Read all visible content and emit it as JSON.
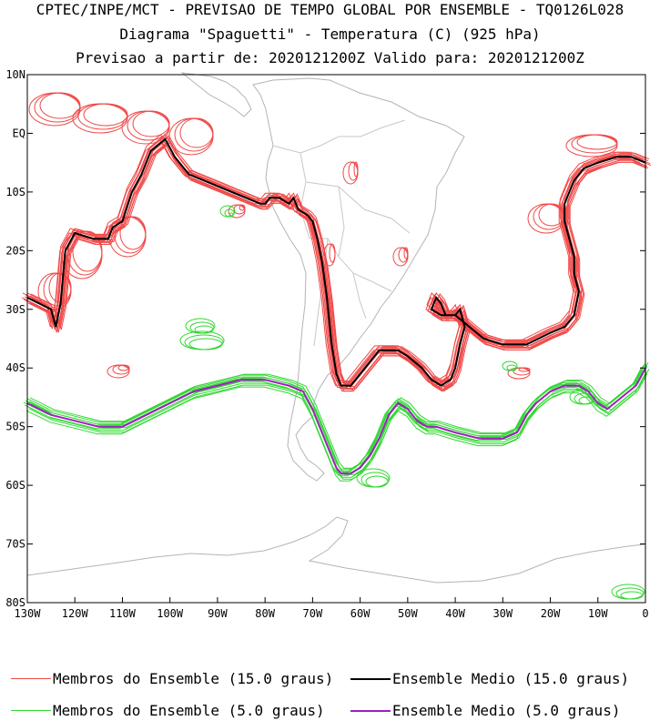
{
  "title": {
    "line1": "CPTEC/INPE/MCT - PREVISAO DE TEMPO GLOBAL POR ENSEMBLE - TQ0126L028",
    "line2": "Diagrama \"Spaguetti\" - Temperatura (C) (925 hPa)",
    "line3": "Previsao a partir de: 2020121200Z  Valido para: 2020121200Z"
  },
  "colors": {
    "member_15": "#f04848",
    "mean_15": "#000000",
    "member_5": "#30d830",
    "mean_5": "#a020c0",
    "coast": "#b4b4b4"
  },
  "chart_data": {
    "type": "line",
    "xlim": [
      -130,
      0
    ],
    "ylim": [
      -80,
      10
    ],
    "x_ticks": [
      "130W",
      "120W",
      "110W",
      "100W",
      "90W",
      "80W",
      "70W",
      "60W",
      "50W",
      "40W",
      "30W",
      "20W",
      "10W",
      "0"
    ],
    "y_ticks": [
      "10N",
      "EQ",
      "10S",
      "20S",
      "30S",
      "40S",
      "50S",
      "60S",
      "70S",
      "80S"
    ],
    "series": [
      {
        "name": "Ensemble Medio (15.0 graus)",
        "lon": [
          -130,
          -125,
          -124,
          -123,
          -122,
          -120,
          -116,
          -113,
          -112,
          -110,
          -108,
          -106,
          -104,
          -101,
          -99,
          -96,
          -93,
          -90,
          -87,
          -84,
          -81,
          -80,
          -79,
          -77,
          -75,
          -74,
          -73,
          -71,
          -70,
          -69,
          -68,
          -67,
          -66,
          -65,
          -64,
          -62,
          -59,
          -56,
          -52,
          -50,
          -47,
          -45,
          -43,
          -41,
          -40,
          -39,
          -38,
          -39,
          -40,
          -42,
          -43,
          -44,
          -45,
          -43,
          -40,
          -37,
          -34,
          -30,
          -25,
          -20,
          -17,
          -15,
          -14,
          -15,
          -15,
          -16,
          -17,
          -17,
          -16,
          -15,
          -13,
          -10,
          -6,
          -3,
          0
        ],
        "lat": [
          -28,
          -30,
          -33,
          -29,
          -20,
          -17,
          -18,
          -18,
          -16,
          -15,
          -10,
          -7,
          -3,
          -1,
          -4,
          -7,
          -8,
          -9,
          -10,
          -11,
          -12,
          -12,
          -11,
          -11,
          -12,
          -11,
          -13,
          -14,
          -15,
          -18,
          -22,
          -28,
          -36,
          -41,
          -43,
          -43,
          -40,
          -37,
          -37,
          -38,
          -40,
          -42,
          -43,
          -42,
          -40,
          -36,
          -33,
          -30,
          -31,
          -31,
          -29,
          -28,
          -30,
          -31,
          -31,
          -33,
          -35,
          -36,
          -36,
          -34,
          -33,
          -31,
          -27,
          -24,
          -21,
          -18,
          -15,
          -12,
          -10,
          -8,
          -6,
          -5,
          -4,
          -4,
          -5
        ]
      },
      {
        "name": "Ensemble Medio (5.0 graus)",
        "lon": [
          -130,
          -125,
          -120,
          -115,
          -110,
          -105,
          -100,
          -95,
          -90,
          -85,
          -80,
          -75,
          -72,
          -70,
          -68,
          -66,
          -65,
          -64,
          -62,
          -60,
          -58,
          -56,
          -54,
          -52,
          -50,
          -48,
          -46,
          -44,
          -40,
          -35,
          -30,
          -27,
          -25,
          -23,
          -20,
          -17,
          -14,
          -12,
          -10,
          -8,
          -5,
          -2,
          0
        ],
        "lat": [
          -46,
          -48,
          -49,
          -50,
          -50,
          -48,
          -46,
          -44,
          -43,
          -42,
          -42,
          -43,
          -44,
          -47,
          -51,
          -55,
          -57,
          -58,
          -58,
          -57,
          -55,
          -52,
          -48,
          -46,
          -47,
          -49,
          -50,
          -50,
          -51,
          -52,
          -52,
          -51,
          -48,
          -46,
          -44,
          -43,
          -43,
          -44,
          -46,
          -47,
          -45,
          -43,
          -40
        ]
      }
    ]
  },
  "legend": {
    "items": [
      {
        "label": "Membros do Ensemble (15.0 graus)"
      },
      {
        "label": "Ensemble Medio (15.0 graus)"
      },
      {
        "label": "Membros do Ensemble (5.0 graus)"
      },
      {
        "label": "Ensemble Medio (5.0 graus)"
      }
    ]
  }
}
